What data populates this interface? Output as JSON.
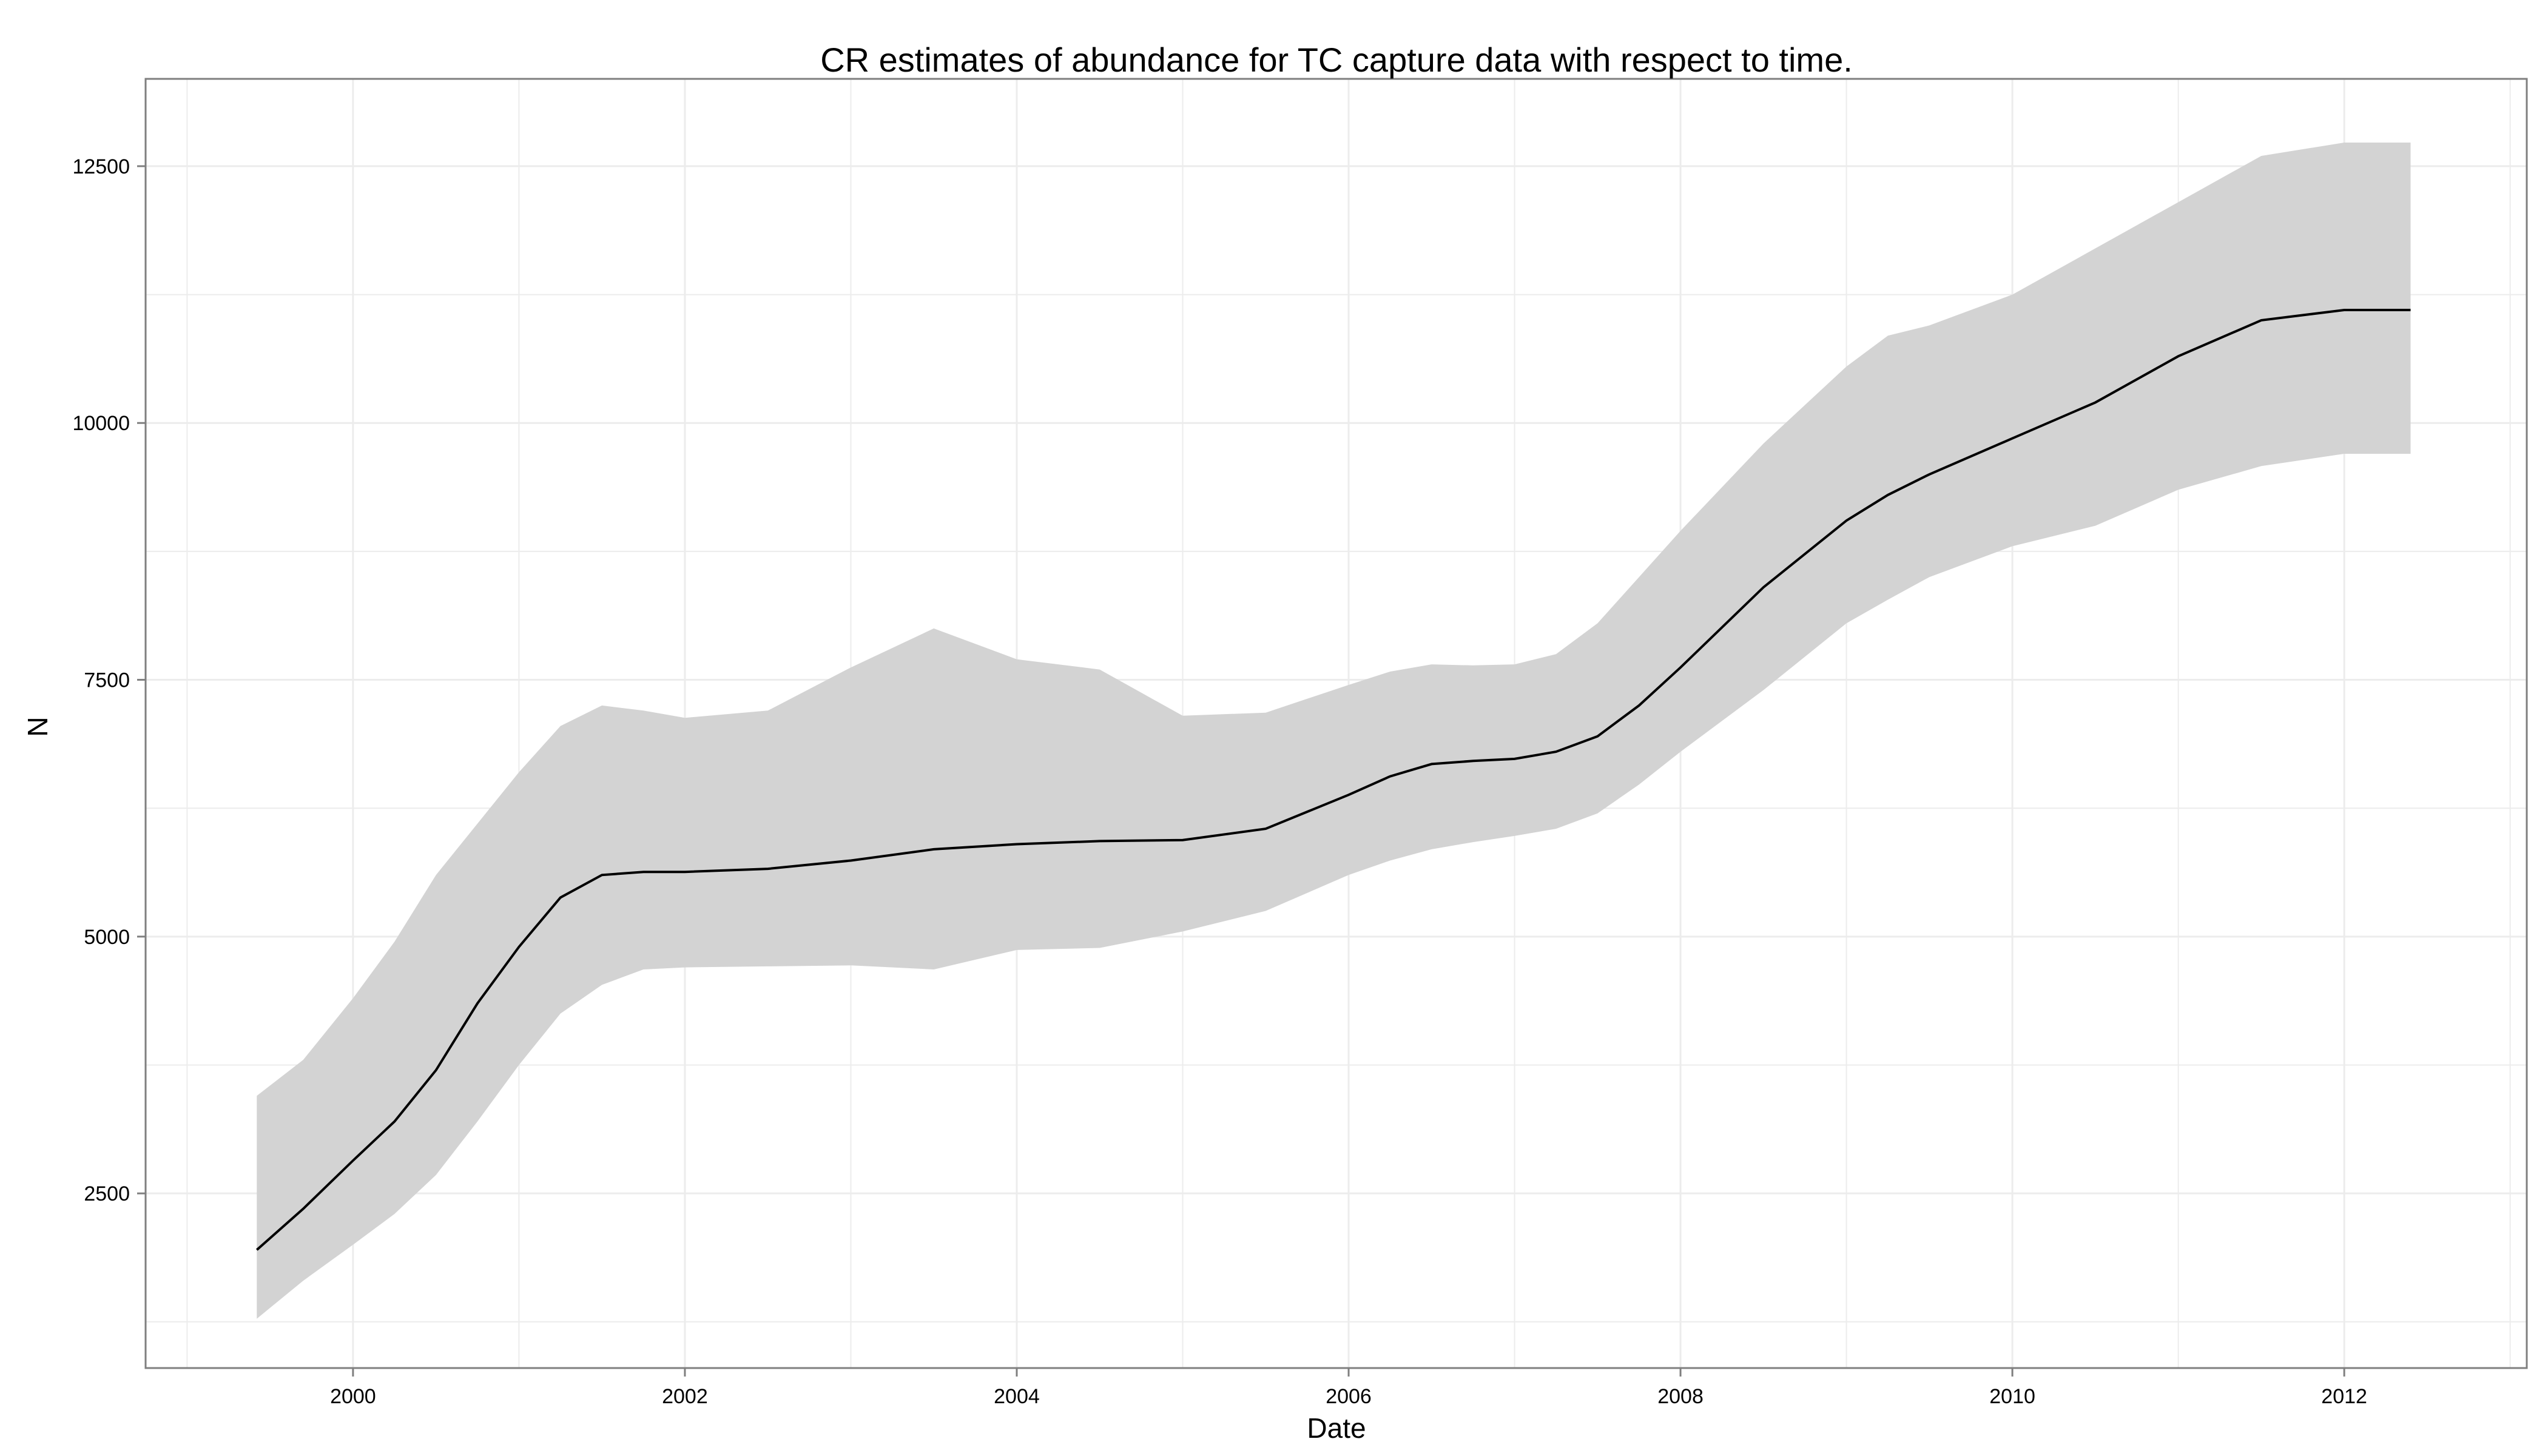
{
  "chart_data": {
    "type": "line",
    "title": "CR estimates of abundance for TC capture data with respect to time.",
    "xlabel": "Date",
    "ylabel": "N",
    "xlim": [
      1998.75,
      2013.1
    ],
    "ylim": [
      800,
      13350
    ],
    "x_ticks": [
      "2000",
      "2002",
      "2004",
      "2006",
      "2008",
      "2010",
      "2012"
    ],
    "y_ticks": [
      "2500",
      "5000",
      "7500",
      "10000",
      "12500"
    ],
    "grid": true,
    "colors": {
      "line": "#000000",
      "ribbon": "#d3d3d3",
      "grid": "#ececec",
      "border": "#7f7f7f"
    },
    "series": [
      {
        "x": [
          1999.42,
          1999.7,
          2000.0,
          2000.25,
          2000.5,
          2000.75,
          2001.0,
          2001.25,
          2001.5,
          2001.75,
          2002.0,
          2002.5,
          2003.0,
          2003.5,
          2004.0,
          2004.5,
          2005.0,
          2005.5,
          2006.0,
          2006.25,
          2006.5,
          2006.75,
          2007.0,
          2007.25,
          2007.5,
          2007.75,
          2008.0,
          2008.5,
          2009.0,
          2009.25,
          2009.5,
          2010.0,
          2010.5,
          2011.0,
          2011.5,
          2012.0,
          2012.4
        ],
        "y": [
          1950,
          2350,
          2820,
          3200,
          3700,
          4350,
          4900,
          5380,
          5600,
          5630,
          5630,
          5660,
          5740,
          5850,
          5900,
          5930,
          5940,
          6050,
          6380,
          6560,
          6680,
          6710,
          6730,
          6800,
          6950,
          7250,
          7620,
          8400,
          9050,
          9300,
          9500,
          9850,
          10200,
          10650,
          11000,
          11100,
          11100
        ],
        "lower": [
          1280,
          1650,
          2000,
          2300,
          2680,
          3200,
          3750,
          4250,
          4530,
          4680,
          4700,
          4710,
          4720,
          4680,
          4870,
          4890,
          5050,
          5250,
          5600,
          5740,
          5850,
          5920,
          5980,
          6050,
          6200,
          6480,
          6800,
          7400,
          8050,
          8280,
          8500,
          8800,
          9000,
          9350,
          9580,
          9700,
          9700
        ],
        "upper": [
          3450,
          3800,
          4400,
          4950,
          5600,
          6100,
          6600,
          7050,
          7250,
          7200,
          7130,
          7200,
          7620,
          8000,
          7700,
          7600,
          7150,
          7180,
          7450,
          7580,
          7650,
          7640,
          7650,
          7750,
          8050,
          8500,
          8950,
          9800,
          10550,
          10850,
          10950,
          11250,
          11700,
          12150,
          12600,
          12730,
          12730
        ]
      }
    ]
  }
}
